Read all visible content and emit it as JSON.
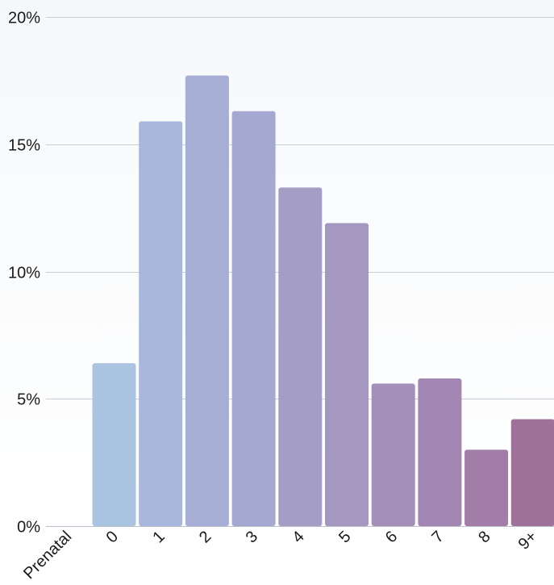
{
  "chart_data": {
    "type": "bar",
    "categories": [
      "Prenatal",
      "0",
      "1",
      "2",
      "3",
      "4",
      "5",
      "6",
      "7",
      "8",
      "9+"
    ],
    "values": [
      0,
      6.4,
      15.9,
      17.7,
      16.3,
      13.3,
      11.9,
      5.6,
      5.8,
      3.0,
      4.2
    ],
    "y_ticks": [
      "0%",
      "5%",
      "10%",
      "15%",
      "20%"
    ],
    "ylim": [
      0,
      20
    ],
    "title": "",
    "xlabel": "",
    "ylabel": "",
    "grid": true,
    "legend": "none",
    "colors": [
      "#aac3e1",
      "#aac3e1",
      "#a8b8dc",
      "#a6aed6",
      "#a5a8d0",
      "#a49ec6",
      "#a497c0",
      "#a38fb8",
      "#a286b3",
      "#a17da8",
      "#a07299"
    ]
  }
}
